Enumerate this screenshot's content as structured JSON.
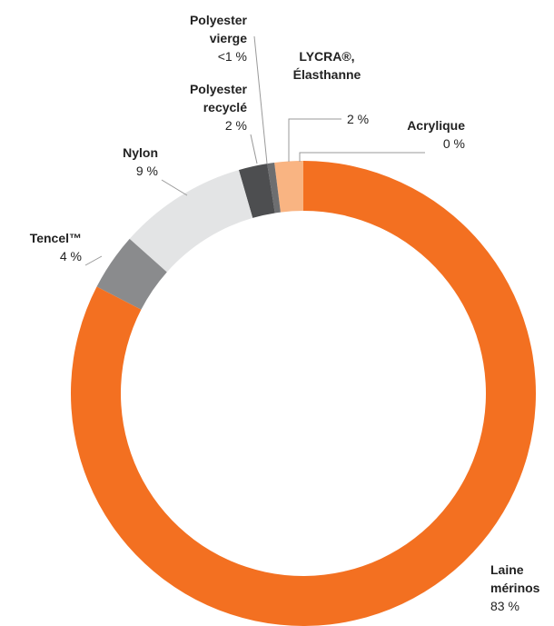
{
  "chart_data": {
    "type": "donut",
    "categories": [
      "Laine mérinos",
      "Tencel™",
      "Nylon",
      "Polyester recyclé",
      "Polyester vierge",
      "LYCRA®, Élasthanne",
      "Acrylique"
    ],
    "values": [
      83,
      4,
      9,
      2,
      0.5,
      2,
      0
    ],
    "value_labels": [
      "83 %",
      "4 %",
      "9 %",
      "2 %",
      "<1 %",
      "2 %",
      "0 %"
    ],
    "colors": [
      "#f37021",
      "#8a8b8d",
      "#e3e4e5",
      "#4d4e50",
      "#6d6e70",
      "#f9b482",
      "#f6d2b6"
    ]
  }
}
